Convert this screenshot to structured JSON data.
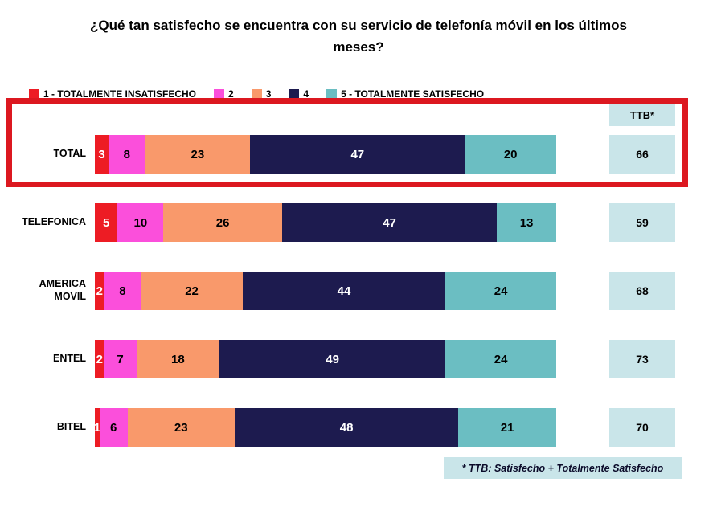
{
  "title": "¿Qué tan satisfecho se encuentra con su servicio de telefonía móvil en los últimos meses?",
  "legend": [
    {
      "label": "1 - TOTALMENTE INSATISFECHO",
      "color": "#ED1C24"
    },
    {
      "label": "2",
      "color": "#FB4FDB"
    },
    {
      "label": "3",
      "color": "#F9996B"
    },
    {
      "label": "4",
      "color": "#1D1B4F"
    },
    {
      "label": "5 - TOTALMENTE SATISFECHO",
      "color": "#6BBEC2"
    }
  ],
  "ttb_header": "TTB*",
  "footnote": "* TTB: Satisfecho + Totalmente Satisfecho",
  "colors": {
    "highlight_border": "#DC1820",
    "ttb_box_background": "#C9E5E9"
  },
  "chart_data": {
    "type": "bar",
    "orientation": "horizontal-stacked",
    "unit": "percent",
    "legend_position": "top",
    "categories": [
      "TOTAL",
      "TELEFONICA",
      "AMERICA\nMOVIL",
      "ENTEL",
      "BITEL"
    ],
    "series": [
      {
        "name": "1 - TOTALMENTE INSATISFECHO",
        "color": "#ED1C24",
        "text_color": "#ffffff",
        "values": [
          3,
          5,
          2,
          2,
          1
        ]
      },
      {
        "name": "2",
        "color": "#FB4FDB",
        "text_color": "#000000",
        "values": [
          8,
          10,
          8,
          7,
          6
        ]
      },
      {
        "name": "3",
        "color": "#F9996B",
        "text_color": "#000000",
        "values": [
          23,
          26,
          22,
          18,
          23
        ]
      },
      {
        "name": "4",
        "color": "#1D1B4F",
        "text_color": "#ffffff",
        "values": [
          47,
          47,
          44,
          49,
          48
        ]
      },
      {
        "name": "5 - TOTALMENTE SATISFECHO",
        "color": "#6BBEC2",
        "text_color": "#000000",
        "values": [
          20,
          13,
          24,
          24,
          21
        ]
      }
    ],
    "ttb_values": [
      66,
      59,
      68,
      73,
      70
    ],
    "highlighted_row": "TOTAL"
  }
}
